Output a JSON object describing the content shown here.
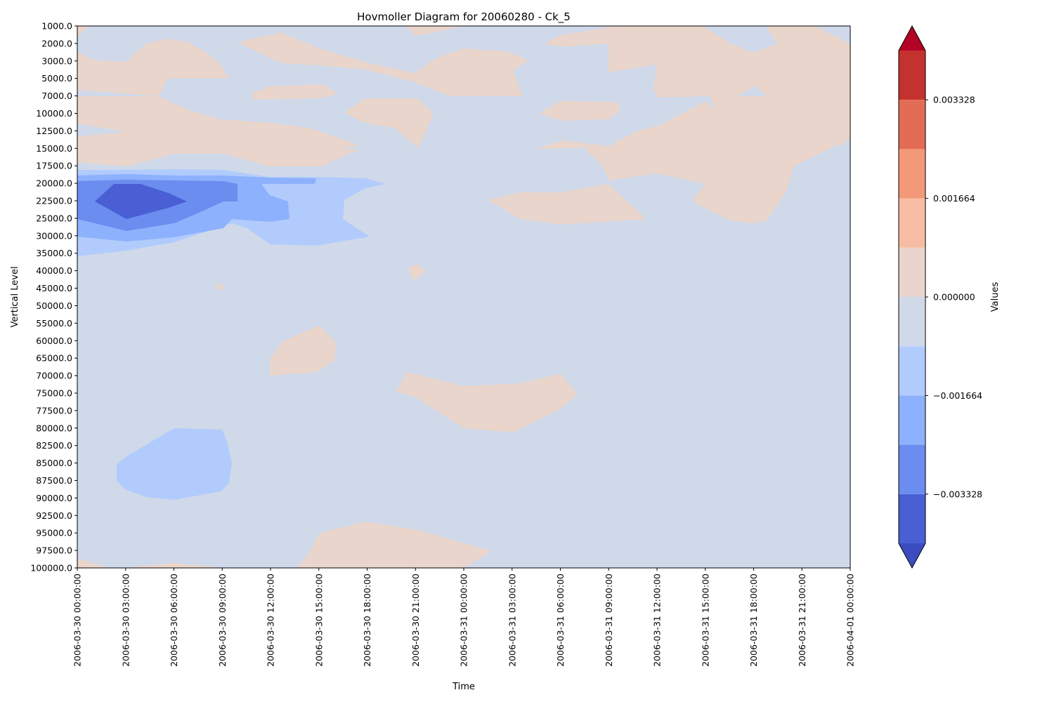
{
  "chart_data": {
    "type": "heatmap",
    "title": "Hovmoller Diagram for 20060280 - Ck_5",
    "xlabel": "Time",
    "ylabel": "Vertical Level",
    "colorbar_label": "Values",
    "x_ticks": [
      "2006-03-30 00:00:00",
      "2006-03-30 03:00:00",
      "2006-03-30 06:00:00",
      "2006-03-30 09:00:00",
      "2006-03-30 12:00:00",
      "2006-03-30 15:00:00",
      "2006-03-30 18:00:00",
      "2006-03-30 21:00:00",
      "2006-03-31 00:00:00",
      "2006-03-31 03:00:00",
      "2006-03-31 06:00:00",
      "2006-03-31 09:00:00",
      "2006-03-31 12:00:00",
      "2006-03-31 15:00:00",
      "2006-03-31 18:00:00",
      "2006-03-31 21:00:00",
      "2006-04-01 00:00:00"
    ],
    "y_levels": [
      "1000.0",
      "2000.0",
      "3000.0",
      "5000.0",
      "7000.0",
      "10000.0",
      "12500.0",
      "15000.0",
      "17500.0",
      "20000.0",
      "22500.0",
      "25000.0",
      "30000.0",
      "35000.0",
      "40000.0",
      "45000.0",
      "50000.0",
      "55000.0",
      "60000.0",
      "65000.0",
      "70000.0",
      "75000.0",
      "77500.0",
      "80000.0",
      "82500.0",
      "85000.0",
      "87500.0",
      "90000.0",
      "92500.0",
      "95000.0",
      "97500.0",
      "100000.0"
    ],
    "colorbar_ticks": [
      "0.003328",
      "0.001664",
      "0.000000",
      "−0.001664",
      "−0.003328"
    ],
    "colorbar_tick_values": [
      0.003328,
      0.001664,
      0.0,
      -0.001664,
      -0.003328
    ],
    "colorbar_range": [
      -0.00416,
      0.00416
    ],
    "colorbar_extend": "both",
    "levels": [
      -0.00416,
      -0.003328,
      -0.002496,
      -0.001664,
      -0.000832,
      0.0,
      0.000832,
      0.001664,
      0.002496,
      0.003328,
      0.00416
    ],
    "colors": [
      "#3b4cc0",
      "#4a5fd4",
      "#6b8df0",
      "#8eb1fd",
      "#b1cbfc",
      "#cfd9ea",
      "#e9d5cb",
      "#f6bda2",
      "#f39879",
      "#e36c55",
      "#c4322f",
      "#b40426"
    ],
    "background_band_color": "#cfd9ea",
    "field_summary": {
      "background_value_range": [
        -0.000832,
        0.0
      ],
      "max_negative_core": {
        "time": "2006-03-30 03:00:00",
        "level": "22500.0",
        "value_range": [
          -0.003328,
          -0.002496
        ]
      },
      "notes": "Slightly positive (0 to 0.000832) patches mostly in upper levels on 2006-03-31 and near surface; negative core at 20000-30000 early 2006-03-30; secondary weak negative region 80000-90000 around 2006-03-30 03:00-09:00"
    }
  }
}
